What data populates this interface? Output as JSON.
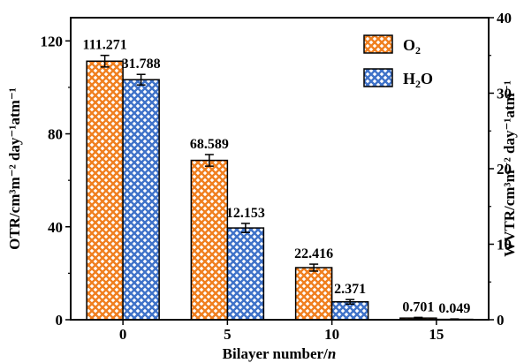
{
  "chart_data": {
    "type": "bar",
    "title": "",
    "xlabel": "Bilayer number/",
    "xlabel_italic": "n",
    "categories": [
      "0",
      "5",
      "10",
      "15"
    ],
    "ylabel": "OTR/cm³m⁻² day⁻¹atm⁻¹",
    "ylim": [
      0,
      130
    ],
    "yticks": [
      "0",
      "40",
      "80",
      "120"
    ],
    "y2label": "WVTR/cm³m⁻² day⁻¹atm⁻¹",
    "y2lim": [
      0,
      40
    ],
    "y2ticks": [
      "0",
      "10",
      "20",
      "30",
      "40"
    ],
    "grid": false,
    "legend_position": "top-right",
    "series": [
      {
        "name": "O2",
        "legend_main": "O",
        "legend_sub": "2",
        "axis": "left",
        "color": "#f07f1f",
        "values": [
          111.271,
          68.589,
          22.416,
          0.701
        ],
        "labels": [
          "111.271",
          "68.589",
          "22.416",
          "0.701"
        ],
        "errors": [
          2.5,
          2.5,
          1.5,
          0.3
        ]
      },
      {
        "name": "H2O",
        "legend_main": "H",
        "legend_sub": "2",
        "legend_tail": "O",
        "axis": "right",
        "color": "#3f72c8",
        "values": [
          31.788,
          12.153,
          2.371,
          0.049
        ],
        "labels": [
          "31.788",
          "12.153",
          "2.371",
          "0.049"
        ],
        "errors": [
          0.7,
          0.6,
          0.3,
          0.05
        ]
      }
    ]
  }
}
